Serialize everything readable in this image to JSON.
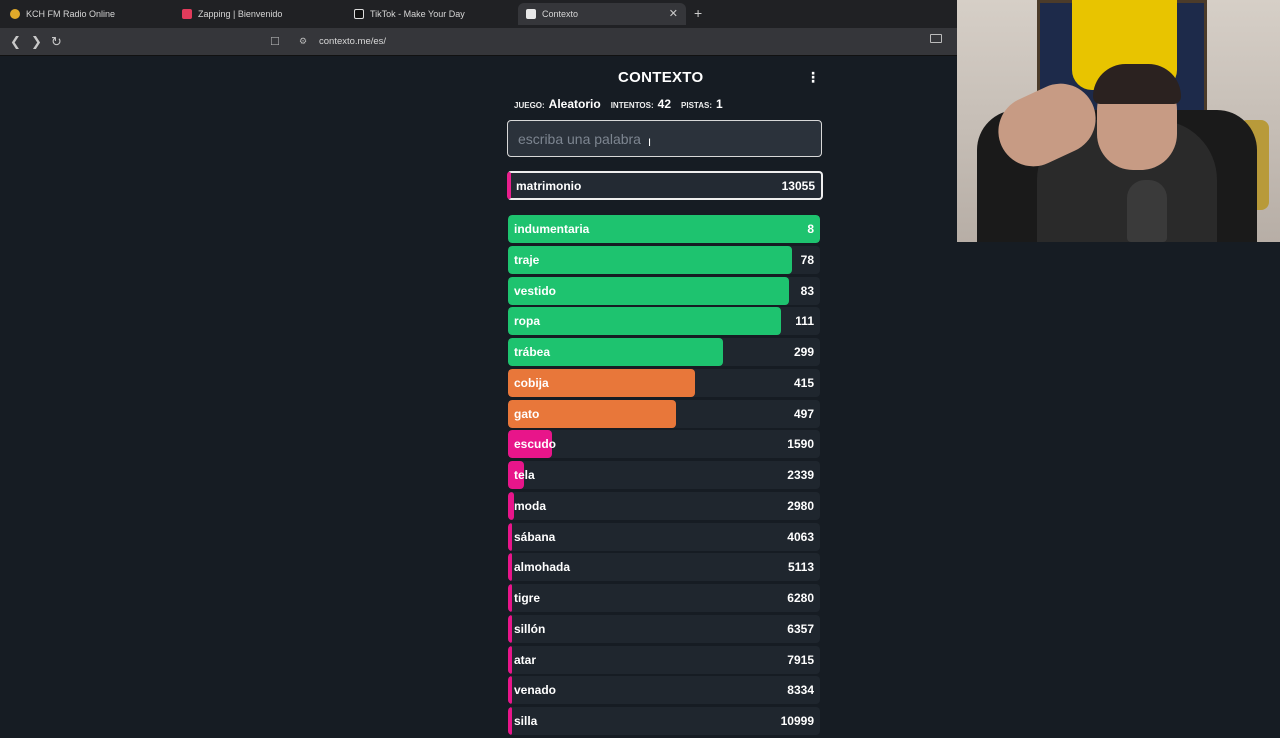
{
  "browser": {
    "tabs": [
      {
        "label": "KCH FM Radio Online",
        "active": false
      },
      {
        "label": "Zapping | Bienvenido",
        "active": false
      },
      {
        "label": "TikTok - Make Your Day",
        "active": false
      },
      {
        "label": "Contexto",
        "active": true
      }
    ],
    "url": "contexto.me/es/"
  },
  "game": {
    "title": "CONTEXTO",
    "stats": {
      "juego_label": "JUEGO:",
      "juego_value": "Aleatorio",
      "intentos_label": "INTENTOS:",
      "intentos_value": "42",
      "pistas_label": "PISTAS:",
      "pistas_value": "1"
    },
    "input_placeholder": "escriba una palabra",
    "current_guess": {
      "word": "matrimonio",
      "rank": "13055"
    },
    "guesses": [
      {
        "word": "indumentaria",
        "rank": "8",
        "fill": 1.0,
        "color": "#1ec36f"
      },
      {
        "word": "traje",
        "rank": "78",
        "fill": 0.91,
        "color": "#1ec36f"
      },
      {
        "word": "vestido",
        "rank": "83",
        "fill": 0.9,
        "color": "#1ec36f"
      },
      {
        "word": "ropa",
        "rank": "111",
        "fill": 0.875,
        "color": "#1ec36f"
      },
      {
        "word": "trábea",
        "rank": "299",
        "fill": 0.69,
        "color": "#1ec36f"
      },
      {
        "word": "cobija",
        "rank": "415",
        "fill": 0.6,
        "color": "#e8773a"
      },
      {
        "word": "gato",
        "rank": "497",
        "fill": 0.54,
        "color": "#e8773a"
      },
      {
        "word": "escudo",
        "rank": "1590",
        "fill": 0.14,
        "color": "#e8158a"
      },
      {
        "word": "tela",
        "rank": "2339",
        "fill": 0.05,
        "color": "#e8158a"
      },
      {
        "word": "moda",
        "rank": "2980",
        "fill": 0.02,
        "color": "#e8158a"
      },
      {
        "word": "sábana",
        "rank": "4063",
        "fill": 0.012,
        "color": "#e8158a"
      },
      {
        "word": "almohada",
        "rank": "5113",
        "fill": 0.012,
        "color": "#e8158a"
      },
      {
        "word": "tigre",
        "rank": "6280",
        "fill": 0.012,
        "color": "#e8158a"
      },
      {
        "word": "sillón",
        "rank": "6357",
        "fill": 0.012,
        "color": "#e8158a"
      },
      {
        "word": "atar",
        "rank": "7915",
        "fill": 0.012,
        "color": "#e8158a"
      },
      {
        "word": "venado",
        "rank": "8334",
        "fill": 0.012,
        "color": "#e8158a"
      },
      {
        "word": "silla",
        "rank": "10999",
        "fill": 0.012,
        "color": "#e8158a"
      }
    ]
  }
}
